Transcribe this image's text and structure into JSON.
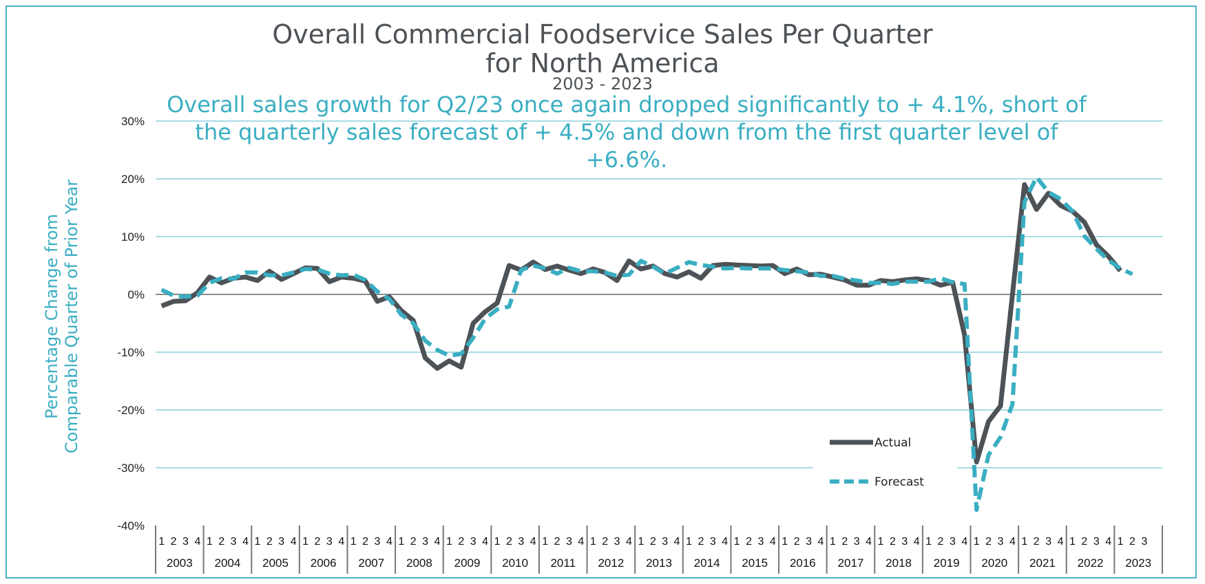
{
  "chart_data": {
    "type": "line",
    "title": "Overall Commercial Foodservice Sales Per Quarter",
    "title_line2": "for North America",
    "period": "2003 - 2023",
    "subtitle": "Overall sales growth for Q2/23 once again dropped significantly to + 4.1%, short of the quarterly sales forecast of + 4.5% and down from the first quarter level of +6.6%.",
    "ylabel_line1": "Percentage Change from",
    "ylabel_line2": "Comparable Quarter of Prior Year",
    "y_ticks": [
      "30%",
      "20%",
      "10%",
      "0%",
      "-10%",
      "-20%",
      "-30%",
      "-40%"
    ],
    "ylim": [
      -40,
      30
    ],
    "years": [
      "2003",
      "2004",
      "2005",
      "2006",
      "2007",
      "2008",
      "2009",
      "2010",
      "2011",
      "2012",
      "2013",
      "2014",
      "2015",
      "2016",
      "2017",
      "2018",
      "2019",
      "2020",
      "2021",
      "2022",
      "2023"
    ],
    "quarters_per_year": [
      4,
      4,
      4,
      4,
      4,
      4,
      4,
      4,
      4,
      4,
      4,
      4,
      4,
      4,
      4,
      4,
      4,
      4,
      4,
      4,
      3
    ],
    "grid": true,
    "legend_position": "bottom-right",
    "series": [
      {
        "name": "Actual",
        "color": "#4d5257",
        "style": "solid",
        "values": [
          -2,
          -1.2,
          -1.1,
          0.3,
          3,
          2,
          2.8,
          3,
          2.4,
          4,
          2.6,
          3.6,
          4.6,
          4.5,
          2.2,
          3,
          2.8,
          2.3,
          -1.2,
          -0.4,
          -2.8,
          -4.5,
          -11,
          -12.8,
          -11.5,
          -12.6,
          -5,
          -3,
          -1.5,
          5,
          4.2,
          5.6,
          4.3,
          4.9,
          4.2,
          3.6,
          4.4,
          3.8,
          2.4,
          5.8,
          4.4,
          4.9,
          3.6,
          3,
          3.9,
          2.8,
          5,
          5.2,
          5.1,
          5,
          4.9,
          5,
          3.6,
          4.4,
          3.4,
          3.5,
          3,
          2.5,
          1.6,
          1.6,
          2.4,
          2.2,
          2.5,
          2.7,
          2.4,
          1.6,
          2.1,
          -7,
          -29,
          -22,
          -19.3,
          0,
          19,
          14.7,
          17.5,
          15.4,
          14.4,
          12.5,
          8.6,
          6.6,
          4.1
        ]
      },
      {
        "name": "Forecast",
        "color": "#3aaec2",
        "style": "dashed",
        "values": [
          0.8,
          -0.2,
          -0.4,
          -0.2,
          2,
          2.8,
          2.7,
          3.8,
          3.8,
          3.3,
          3.3,
          3.8,
          4.4,
          4.3,
          3.6,
          3.3,
          3.4,
          2.5,
          0.5,
          -0.8,
          -3.5,
          -5,
          -8,
          -9.6,
          -10.6,
          -10.3,
          -7.5,
          -4.2,
          -2.6,
          -2.1,
          4.2,
          5,
          4.5,
          3.6,
          4.6,
          4,
          4,
          3.8,
          3.2,
          3.4,
          5.8,
          4.8,
          3.6,
          4.6,
          5.6,
          5.1,
          4.8,
          4.5,
          4.6,
          4.5,
          4.5,
          4.5,
          4.2,
          4,
          3.8,
          3.2,
          3.2,
          2.7,
          2.4,
          2,
          2,
          1.8,
          2.2,
          2.2,
          2.2,
          2.8,
          2.1,
          1.8,
          -37.3,
          -27.8,
          -24.7,
          -19,
          16,
          20.3,
          17.7,
          16.5,
          14.4,
          10.1,
          7.9,
          5.9,
          4.5,
          3.5
        ]
      }
    ]
  }
}
